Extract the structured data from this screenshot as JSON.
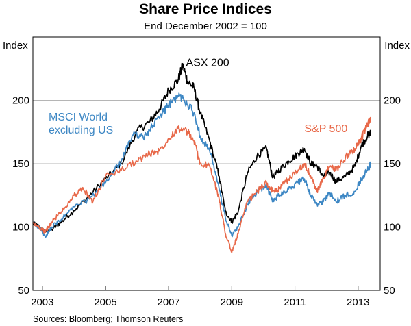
{
  "chart_data": {
    "type": "line",
    "title": "Share Price Indices",
    "subtitle": "End December 2002 = 100",
    "ylabel_left": "Index",
    "ylabel_right": "Index",
    "ylim": [
      50,
      250
    ],
    "yticks": [
      50,
      100,
      150,
      200
    ],
    "xlim": [
      2002.7,
      2013.7
    ],
    "xticks": [
      2003,
      2005,
      2007,
      2009,
      2011,
      2013
    ],
    "xtick_labels": [
      "2003",
      "2005",
      "2007",
      "2009",
      "2011",
      "2013"
    ],
    "reference_line": 100,
    "grid": true,
    "source": "Sources: Bloomberg; Thomson Reuters",
    "series": [
      {
        "name": "ASX 200",
        "color": "#000000",
        "x": [
          2002.7,
          2002.9,
          2003.1,
          2003.3,
          2003.6,
          2004.0,
          2004.5,
          2005.0,
          2005.5,
          2006.0,
          2006.4,
          2006.7,
          2007.0,
          2007.3,
          2007.45,
          2007.6,
          2007.8,
          2008.0,
          2008.3,
          2008.6,
          2008.8,
          2009.0,
          2009.2,
          2009.5,
          2009.8,
          2010.1,
          2010.3,
          2010.5,
          2010.8,
          2011.1,
          2011.3,
          2011.5,
          2011.7,
          2011.9,
          2012.1,
          2012.3,
          2012.6,
          2012.9,
          2013.1,
          2013.3,
          2013.4
        ],
        "values": [
          103,
          100,
          96,
          98,
          104,
          113,
          125,
          138,
          150,
          176,
          183,
          193,
          208,
          216,
          228,
          215,
          210,
          190,
          168,
          140,
          112,
          104,
          112,
          143,
          156,
          162,
          139,
          145,
          152,
          158,
          162,
          150,
          148,
          140,
          143,
          136,
          140,
          148,
          164,
          172,
          174
        ]
      },
      {
        "name": "MSCI World excluding US",
        "color": "#3d87c4",
        "x": [
          2002.7,
          2002.9,
          2003.1,
          2003.3,
          2003.6,
          2004.0,
          2004.5,
          2005.0,
          2005.5,
          2005.9,
          2006.2,
          2006.5,
          2006.8,
          2007.0,
          2007.3,
          2007.5,
          2007.8,
          2008.0,
          2008.3,
          2008.6,
          2008.8,
          2009.0,
          2009.2,
          2009.5,
          2009.8,
          2010.1,
          2010.3,
          2010.5,
          2010.8,
          2011.1,
          2011.3,
          2011.5,
          2011.7,
          2011.9,
          2012.1,
          2012.3,
          2012.6,
          2012.9,
          2013.1,
          2013.3,
          2013.4
        ],
        "values": [
          103,
          100,
          92,
          100,
          106,
          116,
          122,
          135,
          152,
          175,
          170,
          180,
          190,
          196,
          204,
          200,
          190,
          172,
          160,
          130,
          107,
          93,
          100,
          118,
          128,
          133,
          120,
          126,
          130,
          135,
          138,
          125,
          118,
          120,
          127,
          120,
          125,
          128,
          138,
          145,
          150
        ]
      },
      {
        "name": "S&P 500",
        "color": "#e8694a",
        "x": [
          2002.7,
          2002.9,
          2003.1,
          2003.3,
          2003.6,
          2004.0,
          2004.3,
          2004.6,
          2005.0,
          2005.5,
          2006.0,
          2006.4,
          2006.7,
          2007.0,
          2007.3,
          2007.6,
          2007.8,
          2008.0,
          2008.3,
          2008.6,
          2008.8,
          2009.0,
          2009.2,
          2009.5,
          2009.8,
          2010.1,
          2010.3,
          2010.5,
          2010.8,
          2011.1,
          2011.3,
          2011.5,
          2011.7,
          2011.9,
          2012.1,
          2012.3,
          2012.6,
          2012.9,
          2013.1,
          2013.3,
          2013.4
        ],
        "values": [
          103,
          100,
          96,
          104,
          112,
          125,
          130,
          120,
          140,
          145,
          152,
          158,
          160,
          170,
          178,
          175,
          168,
          150,
          148,
          122,
          95,
          80,
          95,
          120,
          128,
          135,
          128,
          130,
          138,
          145,
          150,
          140,
          128,
          138,
          148,
          145,
          155,
          162,
          170,
          180,
          186
        ]
      }
    ],
    "annotations": [
      {
        "series": "ASX 200",
        "lines": [
          "ASX 200"
        ],
        "at_x": 2007.55,
        "at_y": 227
      },
      {
        "series": "MSCI World excluding US",
        "lines": [
          "MSCI World",
          "excluding US"
        ],
        "at_x": 2003.2,
        "at_y": 184
      },
      {
        "series": "S&P 500",
        "lines": [
          "S&P 500"
        ],
        "at_x": 2011.3,
        "at_y": 175
      }
    ]
  }
}
